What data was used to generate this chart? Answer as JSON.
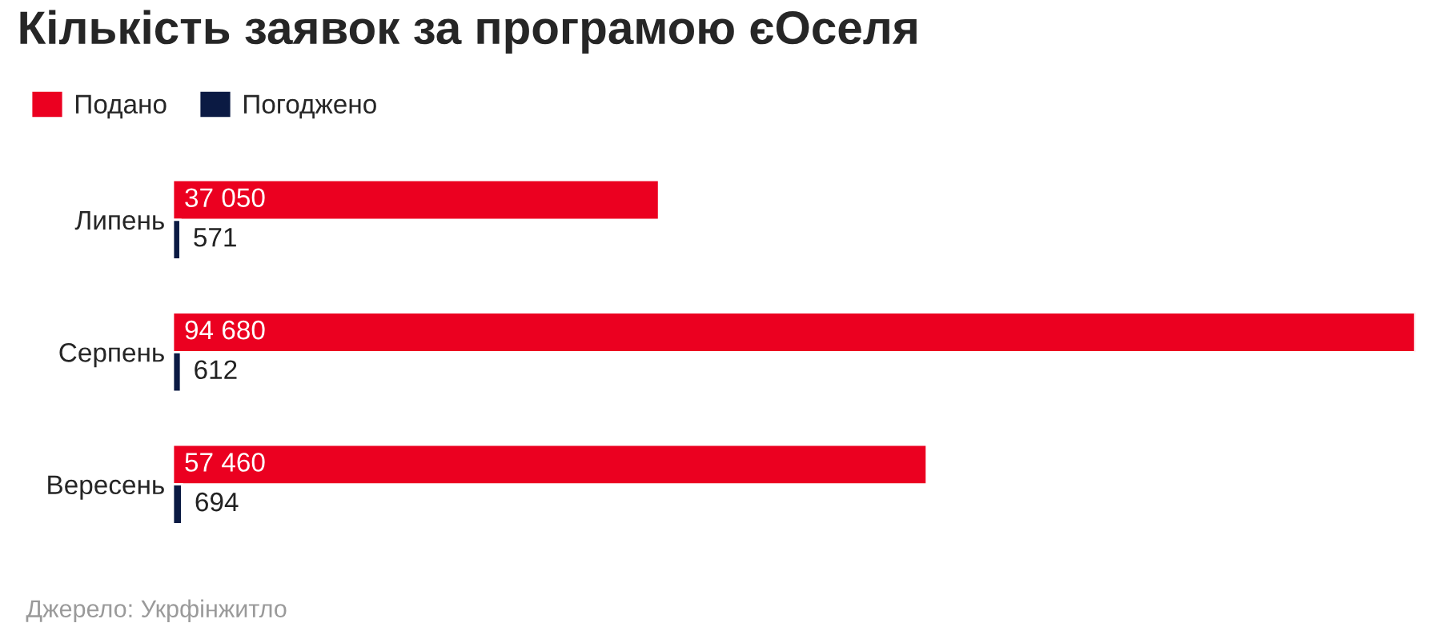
{
  "chart_data": {
    "type": "bar",
    "orientation": "horizontal",
    "title": "Кількість заявок за програмою єОселя",
    "categories": [
      "Липень",
      "Серпень",
      "Вересень"
    ],
    "series": [
      {
        "name": "Подано",
        "color": "#eb0020",
        "values": [
          37050,
          94680,
          57460
        ],
        "value_labels": [
          "37 050",
          "94 680",
          "57 460"
        ]
      },
      {
        "name": "Погоджено",
        "color": "#0b1a43",
        "values": [
          571,
          612,
          694
        ],
        "value_labels": [
          "571",
          "612",
          "694"
        ]
      }
    ],
    "legend": "top left",
    "grid": false,
    "tick_labels": "y",
    "annotations": [
      "Джерело: Укрфінжитло"
    ]
  }
}
